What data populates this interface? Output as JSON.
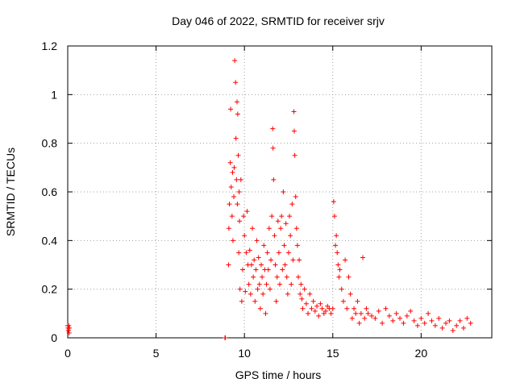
{
  "chart_data": {
    "type": "scatter",
    "title": "Day 046 of 2022, SRMTID for receiver srjv",
    "xlabel": "GPS time / hours",
    "ylabel": "SRMTID / TECUs",
    "xlim": [
      0,
      24
    ],
    "ylim": [
      0,
      1.2
    ],
    "xticks": [
      "0",
      "5",
      "10",
      "15",
      "20"
    ],
    "xtick_values": [
      0,
      5,
      10,
      15,
      20
    ],
    "yticks": [
      "0",
      "0.2",
      "0.4",
      "0.6",
      "0.8",
      "1",
      "1.2"
    ],
    "ytick_values": [
      0,
      0.2,
      0.4,
      0.6,
      0.8,
      1.0,
      1.2
    ],
    "grid": true,
    "marker": "+",
    "color": "#ff0000",
    "series": [
      {
        "name": "SRMTID",
        "x": [
          0.0,
          0.02,
          0.04,
          0.06,
          0.08,
          0.1,
          8.9,
          8.92,
          9.1,
          9.12,
          9.15,
          9.2,
          9.22,
          9.25,
          9.3,
          9.33,
          9.35,
          9.4,
          9.42,
          9.45,
          9.5,
          9.52,
          9.55,
          9.58,
          9.6,
          9.62,
          9.65,
          9.68,
          9.7,
          9.72,
          9.75,
          9.8,
          9.85,
          9.9,
          9.95,
          10.0,
          10.05,
          10.1,
          10.15,
          10.2,
          10.25,
          10.3,
          10.35,
          10.4,
          10.45,
          10.5,
          10.55,
          10.6,
          10.65,
          10.7,
          10.75,
          10.8,
          10.85,
          10.9,
          10.95,
          11.0,
          11.05,
          11.1,
          11.15,
          11.2,
          11.25,
          11.3,
          11.35,
          11.4,
          11.45,
          11.5,
          11.55,
          11.6,
          11.62,
          11.65,
          11.7,
          11.75,
          11.8,
          11.85,
          11.9,
          11.95,
          12.0,
          12.05,
          12.1,
          12.15,
          12.2,
          12.25,
          12.3,
          12.35,
          12.4,
          12.45,
          12.5,
          12.55,
          12.6,
          12.65,
          12.7,
          12.75,
          12.8,
          12.82,
          12.85,
          12.9,
          12.95,
          13.0,
          13.05,
          13.1,
          13.15,
          13.2,
          13.25,
          13.3,
          13.4,
          13.5,
          13.6,
          13.7,
          13.8,
          13.9,
          14.0,
          14.1,
          14.2,
          14.3,
          14.4,
          14.5,
          14.6,
          14.7,
          14.8,
          14.9,
          15.0,
          15.05,
          15.1,
          15.15,
          15.2,
          15.25,
          15.3,
          15.35,
          15.4,
          15.5,
          15.6,
          15.7,
          15.8,
          15.9,
          16.0,
          16.1,
          16.2,
          16.3,
          16.4,
          16.5,
          16.6,
          16.7,
          16.8,
          16.9,
          17.0,
          17.2,
          17.4,
          17.6,
          17.8,
          18.0,
          18.2,
          18.4,
          18.6,
          18.8,
          19.0,
          19.2,
          19.4,
          19.6,
          19.8,
          20.0,
          20.2,
          20.4,
          20.6,
          20.8,
          21.0,
          21.2,
          21.4,
          21.6,
          21.8,
          22.0,
          22.2,
          22.4,
          22.6,
          22.8
        ],
        "y": [
          0.05,
          0.04,
          0.03,
          0.05,
          0.02,
          0.04,
          0.0,
          0.0,
          0.3,
          0.45,
          0.55,
          0.72,
          0.94,
          0.62,
          0.5,
          0.68,
          0.4,
          0.58,
          0.7,
          1.14,
          1.05,
          0.82,
          0.65,
          0.97,
          0.55,
          0.92,
          0.75,
          0.35,
          0.6,
          0.48,
          0.2,
          0.65,
          0.15,
          0.28,
          0.5,
          0.42,
          0.19,
          0.35,
          0.52,
          0.3,
          0.22,
          0.36,
          0.18,
          0.3,
          0.45,
          0.25,
          0.32,
          0.15,
          0.28,
          0.4,
          0.2,
          0.33,
          0.22,
          0.12,
          0.3,
          0.25,
          0.18,
          0.38,
          0.28,
          0.1,
          0.22,
          0.35,
          0.28,
          0.45,
          0.2,
          0.32,
          0.5,
          0.86,
          0.78,
          0.65,
          0.42,
          0.3,
          0.15,
          0.25,
          0.48,
          0.35,
          0.22,
          0.45,
          0.5,
          0.28,
          0.6,
          0.38,
          0.3,
          0.47,
          0.25,
          0.18,
          0.35,
          0.5,
          0.42,
          0.22,
          0.55,
          0.32,
          0.93,
          0.85,
          0.75,
          0.58,
          0.45,
          0.38,
          0.25,
          0.32,
          0.18,
          0.22,
          0.16,
          0.12,
          0.2,
          0.14,
          0.1,
          0.18,
          0.12,
          0.15,
          0.11,
          0.13,
          0.09,
          0.14,
          0.12,
          0.1,
          0.11,
          0.13,
          0.12,
          0.1,
          0.12,
          0.56,
          0.5,
          0.38,
          0.42,
          0.35,
          0.3,
          0.25,
          0.28,
          0.2,
          0.15,
          0.32,
          0.12,
          0.25,
          0.18,
          0.08,
          0.12,
          0.1,
          0.15,
          0.06,
          0.1,
          0.33,
          0.08,
          0.12,
          0.1,
          0.09,
          0.08,
          0.11,
          0.06,
          0.12,
          0.09,
          0.07,
          0.1,
          0.08,
          0.06,
          0.09,
          0.11,
          0.07,
          0.05,
          0.08,
          0.06,
          0.1,
          0.07,
          0.05,
          0.08,
          0.04,
          0.06,
          0.07,
          0.03,
          0.05,
          0.07,
          0.04,
          0.08,
          0.06
        ]
      }
    ]
  }
}
